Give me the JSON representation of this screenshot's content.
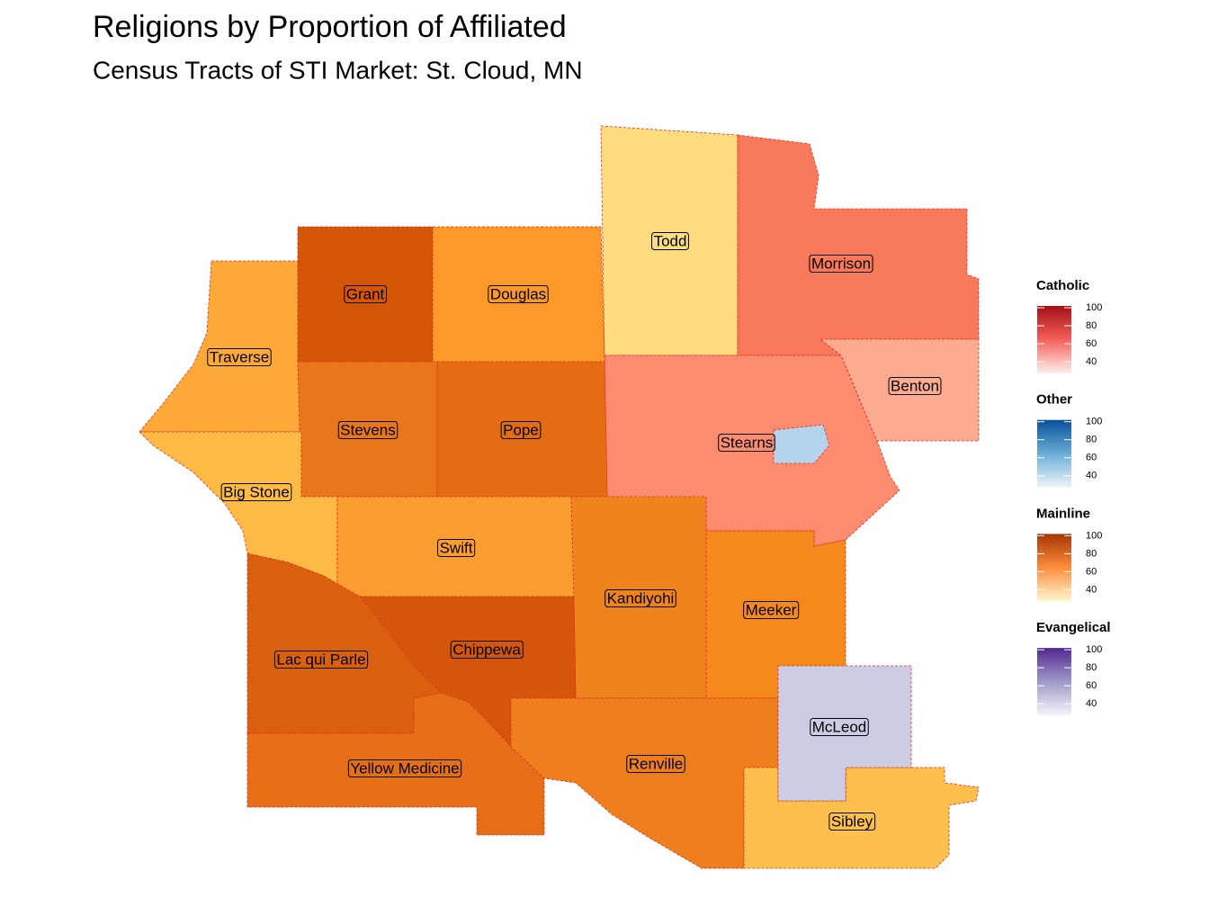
{
  "header": {
    "title": "Religions by Proportion of Affiliated",
    "subtitle": "Census Tracts of STI Market: St. Cloud, MN"
  },
  "counties": [
    {
      "label": "Todd"
    },
    {
      "label": "Morrison"
    },
    {
      "label": "Grant"
    },
    {
      "label": "Douglas"
    },
    {
      "label": "Traverse"
    },
    {
      "label": "Benton"
    },
    {
      "label": "Stevens"
    },
    {
      "label": "Pope"
    },
    {
      "label": "Stearns"
    },
    {
      "label": "Big Stone"
    },
    {
      "label": "Swift"
    },
    {
      "label": "Kandiyohi"
    },
    {
      "label": "Meeker"
    },
    {
      "label": "Chippewa"
    },
    {
      "label": "Lac qui Parle"
    },
    {
      "label": "McLeod"
    },
    {
      "label": "Yellow Medicine"
    },
    {
      "label": "Renville"
    },
    {
      "label": "Sibley"
    }
  ],
  "legends": [
    {
      "title": "Catholic",
      "ticks": [
        40,
        60,
        80,
        100
      ]
    },
    {
      "title": "Other",
      "ticks": [
        40,
        60,
        80,
        100
      ]
    },
    {
      "title": "Mainline",
      "ticks": [
        40,
        60,
        80,
        100
      ]
    },
    {
      "title": "Evangelical",
      "ticks": [
        40,
        60,
        80,
        100
      ]
    }
  ]
}
